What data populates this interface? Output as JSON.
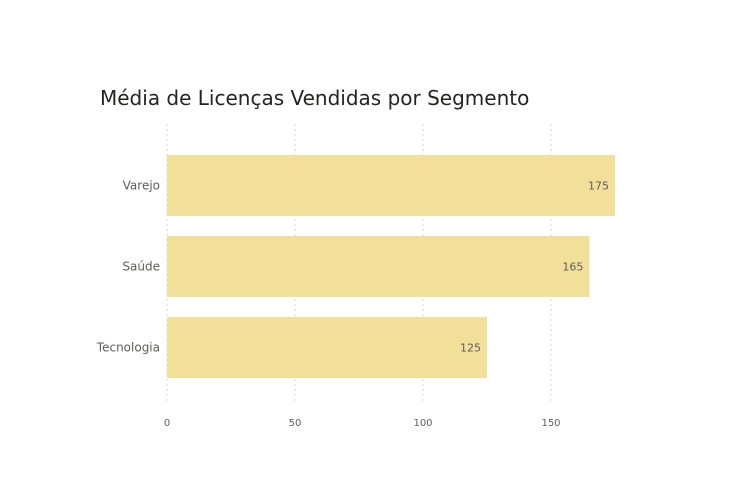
{
  "chart_data": {
    "type": "bar",
    "orientation": "horizontal",
    "title": "Média de Licenças Vendidas por Segmento",
    "categories": [
      "Varejo",
      "Saúde",
      "Tecnologia"
    ],
    "values": [
      175,
      165,
      125
    ],
    "xlim": [
      0,
      175
    ],
    "xticks": [
      0,
      50,
      100,
      150
    ],
    "grid": true,
    "bar_color": "#f2df9a"
  }
}
